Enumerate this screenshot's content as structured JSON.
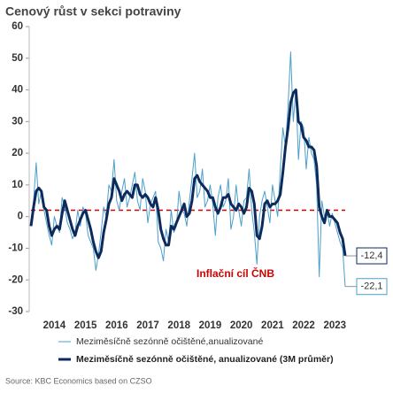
{
  "chart_data": {
    "type": "line",
    "title": "Cenový růst v sekci potraviny",
    "source": "Source: KBC Economics based on CZSO",
    "categories": [
      null,
      null,
      null,
      null,
      null,
      null,
      null,
      null,
      null,
      "2014",
      null,
      null,
      null,
      null,
      null,
      null,
      null,
      null,
      null,
      null,
      null,
      "2015",
      null,
      null,
      null,
      null,
      null,
      null,
      null,
      null,
      null,
      null,
      null,
      "2016",
      null,
      null,
      null,
      null,
      null,
      null,
      null,
      null,
      null,
      null,
      null,
      "2017",
      null,
      null,
      null,
      null,
      null,
      null,
      null,
      null,
      null,
      null,
      null,
      "2018",
      null,
      null,
      null,
      null,
      null,
      null,
      null,
      null,
      null,
      null,
      null,
      "2019",
      null,
      null,
      null,
      null,
      null,
      null,
      null,
      null,
      null,
      null,
      null,
      "2020",
      null,
      null,
      null,
      null,
      null,
      null,
      null,
      null,
      null,
      null,
      null,
      "2021",
      null,
      null,
      null,
      null,
      null,
      null,
      null,
      null,
      null,
      null,
      null,
      "2022",
      null,
      null,
      null,
      null,
      null,
      null,
      null,
      null,
      null,
      null,
      null,
      "2023",
      null,
      null,
      null,
      null
    ],
    "series": [
      {
        "name": "Meziměsíčně sezónně očištěné,anualizované",
        "color": "#4a9fcc",
        "width": 1,
        "end_label": "-22,1",
        "values": [
          -3,
          5,
          17,
          4,
          8,
          2,
          -2,
          -6,
          -9,
          0,
          -3,
          -5,
          6,
          3,
          -2,
          -4,
          -7,
          -5,
          2,
          -3,
          3,
          1,
          -6,
          -8,
          -10,
          -17,
          -12,
          -5,
          3,
          0,
          10,
          8,
          18,
          5,
          2,
          8,
          12,
          3,
          6,
          10,
          14,
          5,
          2,
          12,
          8,
          -2,
          4,
          6,
          8,
          -8,
          -10,
          -14,
          -4,
          -8,
          2,
          -5,
          -3,
          8,
          2,
          1,
          -3,
          5,
          12,
          20,
          6,
          8,
          15,
          3,
          5,
          10,
          4,
          -6,
          6,
          10,
          3,
          5,
          12,
          -4,
          0,
          10,
          2,
          -3,
          5,
          6,
          15,
          2,
          -5,
          -15,
          0,
          5,
          8,
          3,
          -2,
          10,
          5,
          0,
          15,
          28,
          22,
          35,
          52,
          30,
          40,
          18,
          30,
          28,
          15,
          25,
          20,
          18,
          10,
          -19,
          5,
          0,
          2,
          -3,
          1,
          -2,
          -5,
          -8,
          -10,
          -22.1
        ]
      },
      {
        "name": "Meziměsíčně sezónně očištěné, anualizované (3M průměr)",
        "color": "#0d2a5c",
        "width": 3,
        "end_label": "-12,4",
        "values": [
          -3,
          3,
          8,
          9,
          8,
          3,
          2,
          -3,
          -6,
          -4,
          -3,
          -4,
          1,
          5,
          2,
          -1,
          -4,
          -6,
          -3,
          -1,
          1,
          2,
          -1,
          -4,
          -8,
          -11,
          -13,
          -11,
          -5,
          -1,
          4,
          6,
          12,
          10,
          8,
          5,
          7,
          8,
          7,
          6,
          10,
          10,
          7,
          6,
          7,
          6,
          4,
          3,
          6,
          2,
          -4,
          -7,
          -9,
          -9,
          -3,
          -4,
          -2,
          0,
          2,
          4,
          0,
          1,
          5,
          12,
          13,
          11,
          10,
          9,
          8,
          6,
          6,
          3,
          1,
          3,
          6,
          6,
          7,
          4,
          3,
          2,
          4,
          3,
          1,
          3,
          9,
          8,
          4,
          -6,
          -7,
          -3,
          4,
          5,
          3,
          4,
          4,
          5,
          7,
          14,
          22,
          28,
          36,
          39,
          40,
          30,
          29,
          25,
          24,
          22,
          22,
          21,
          16,
          3,
          0,
          -2,
          2,
          0,
          0,
          -1,
          -2,
          -5,
          -7,
          -12.4
        ]
      }
    ],
    "target": {
      "label": "Inflační cíl ČNB",
      "value": 2,
      "color": "#d00000"
    },
    "ylim": [
      -30,
      60
    ],
    "yticks": [
      -30,
      -20,
      -10,
      0,
      10,
      20,
      30,
      40,
      50,
      60
    ]
  }
}
